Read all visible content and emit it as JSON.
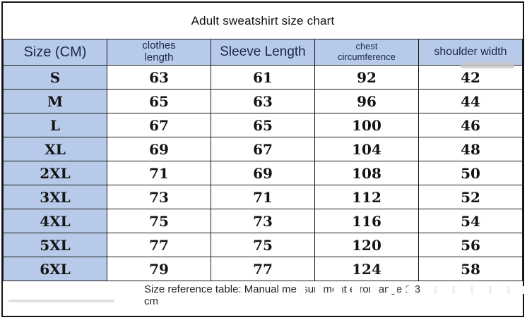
{
  "title": "Adult sweatshirt size chart",
  "header": {
    "col0": "Size (CM)",
    "col1": "clothes\nlength",
    "col2": "Sleeve Length",
    "col3": "chest\ncircumference",
    "col4": "shoulder width"
  },
  "footer_note": "Size reference table: Manual measurement error range 1-3\ncm",
  "colors": {
    "header_bg": "#b7cae9",
    "header_text": "#1b2947",
    "border": "#1b1b1b",
    "data_text": "#141414"
  },
  "chart_data": {
    "type": "table",
    "title": "Adult sweatshirt size chart",
    "columns": [
      "Size (CM)",
      "clothes length",
      "Sleeve Length",
      "chest circumference",
      "shoulder width"
    ],
    "rows": [
      [
        "S",
        63,
        61,
        92,
        42
      ],
      [
        "M",
        65,
        63,
        96,
        44
      ],
      [
        "L",
        67,
        65,
        100,
        46
      ],
      [
        "XL",
        69,
        67,
        104,
        48
      ],
      [
        "2XL",
        71,
        69,
        108,
        50
      ],
      [
        "3XL",
        73,
        71,
        112,
        52
      ],
      [
        "4XL",
        75,
        73,
        116,
        54
      ],
      [
        "5XL",
        77,
        75,
        120,
        56
      ],
      [
        "6XL",
        79,
        77,
        124,
        58
      ]
    ],
    "note": "Size reference table: Manual measurement error range 1-3 cm",
    "units": "cm"
  }
}
